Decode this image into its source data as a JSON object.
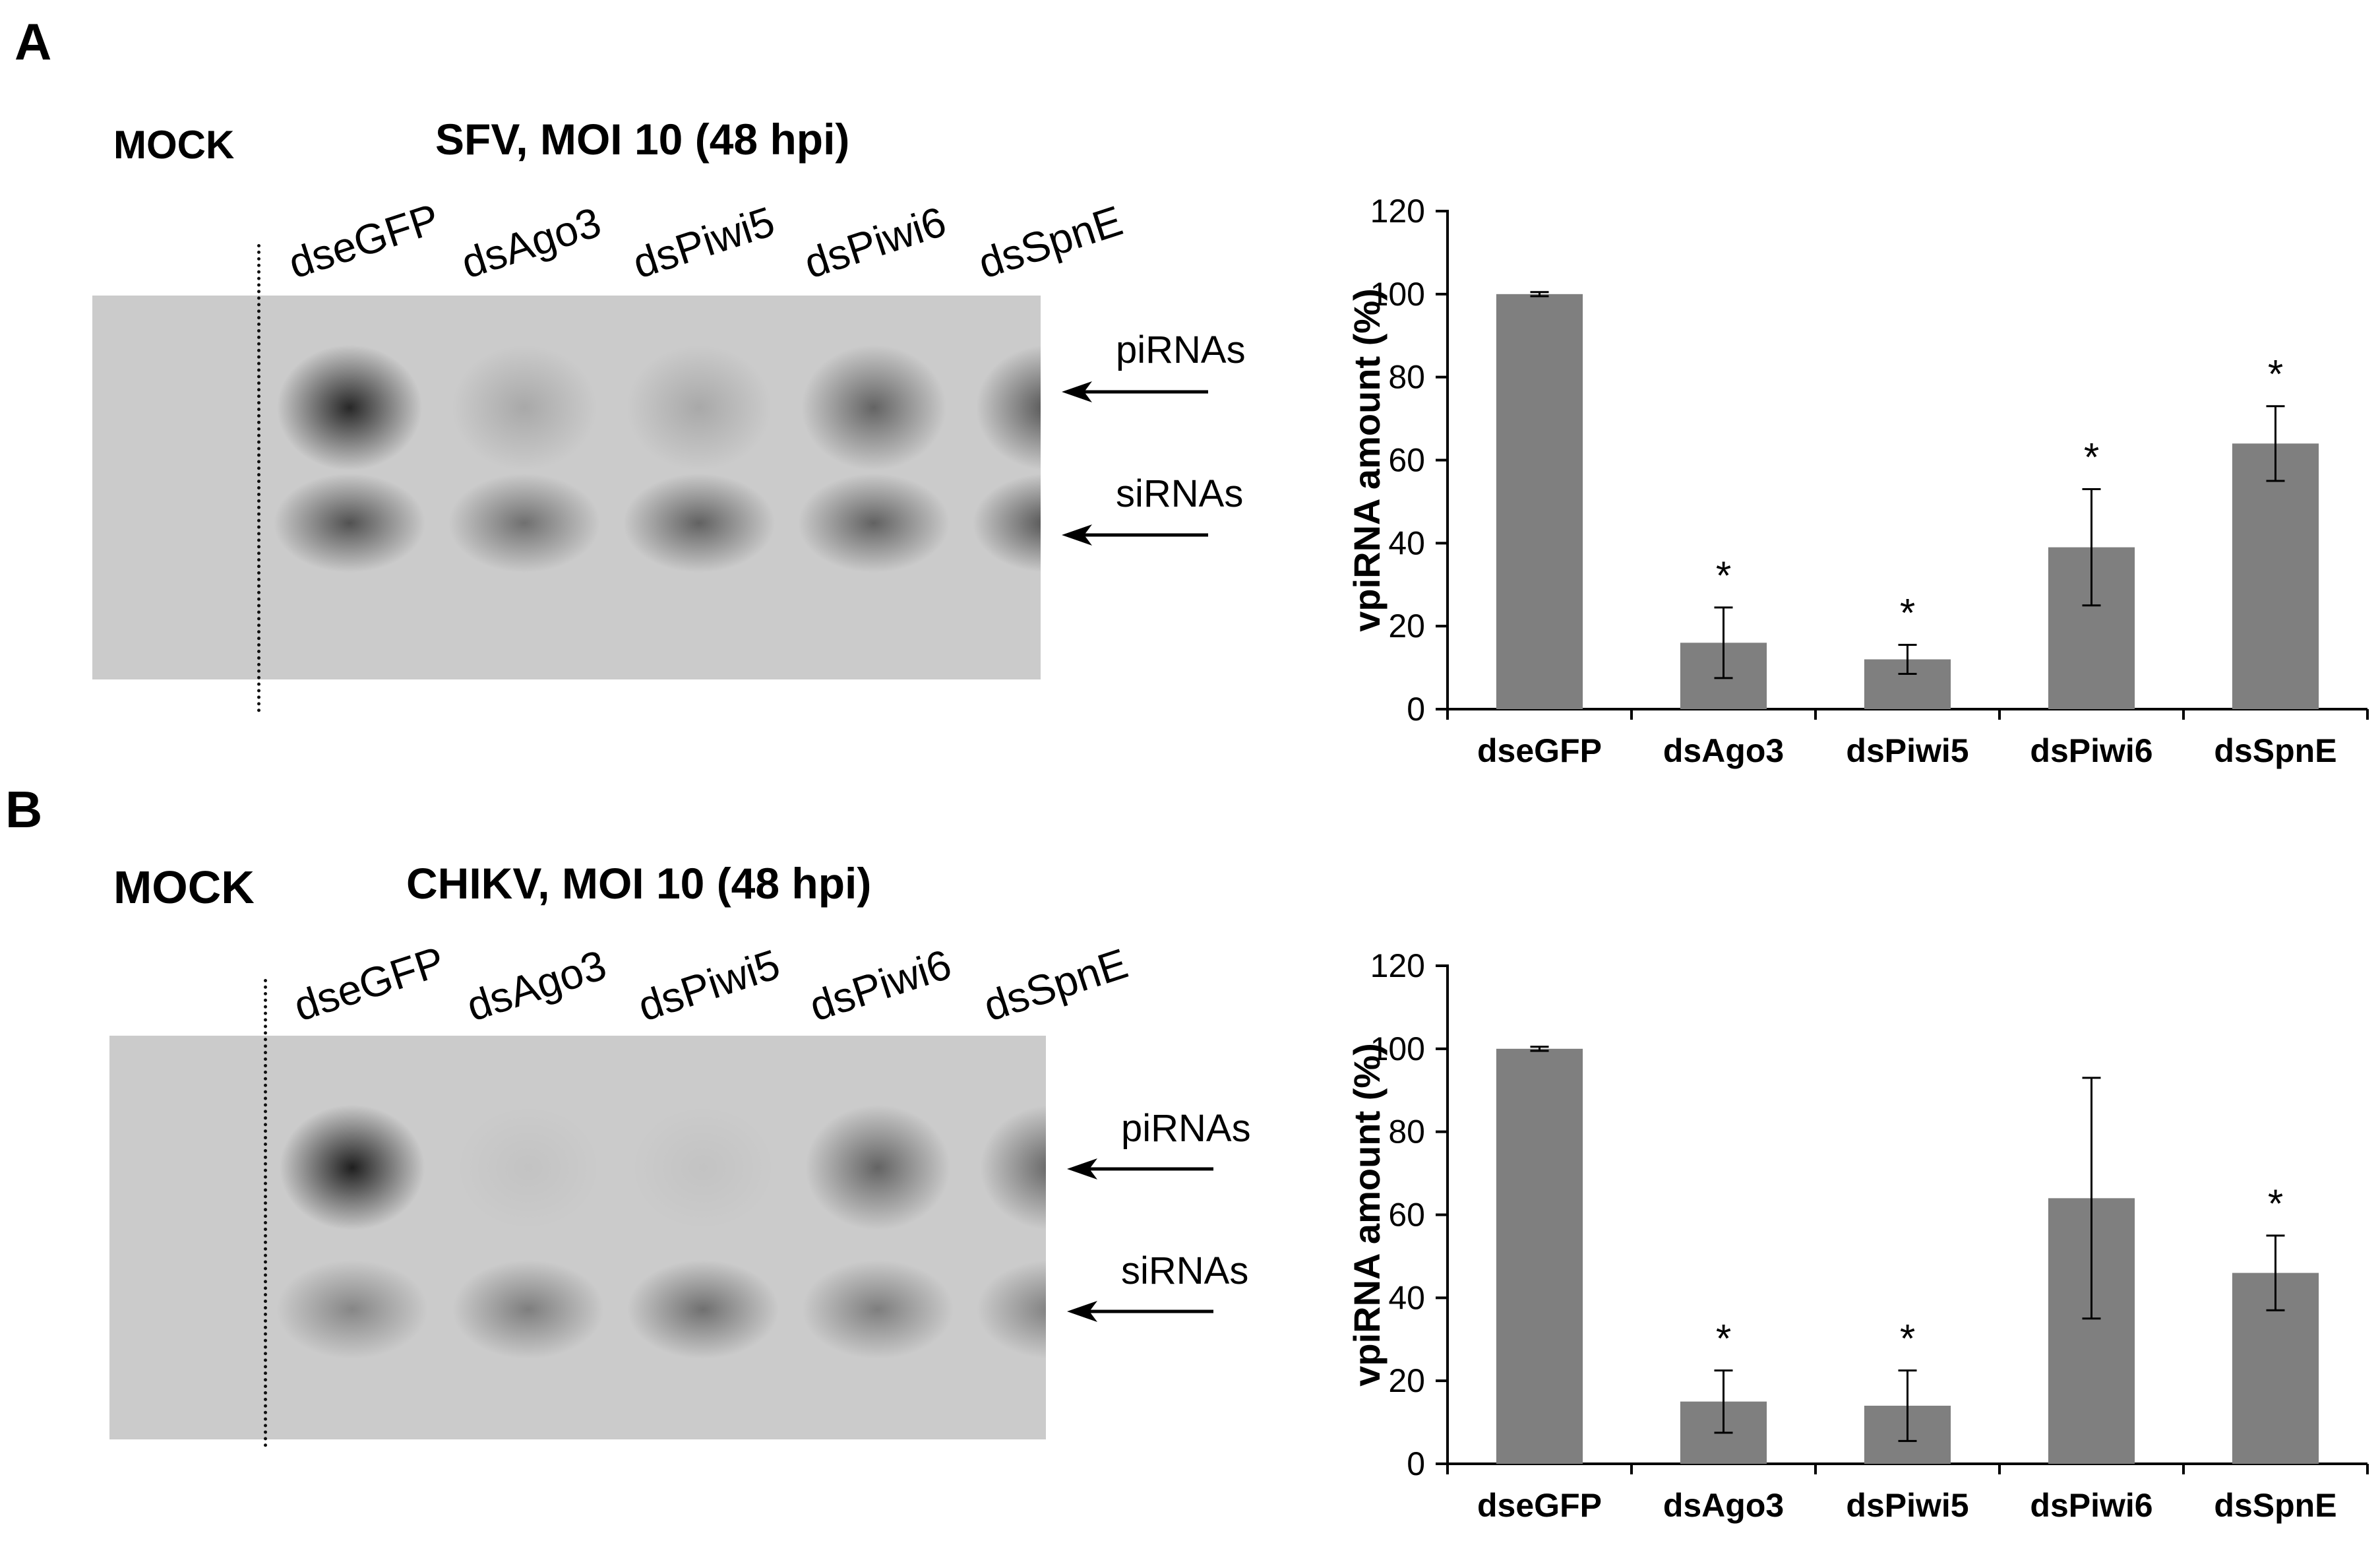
{
  "panels": [
    {
      "letter": "A",
      "mock_label": "MOCK",
      "virus_label": "SFV, MOI 10 (48 hpi)",
      "lanes": [
        "dseGFP",
        "dsAgo3",
        "dsPiwi5",
        "dsPiwi6",
        "dsSpnE"
      ],
      "band_labels": [
        "piRNAs",
        "siRNAs"
      ],
      "bands": {
        "piRNA_intensity": [
          0.95,
          0.2,
          0.2,
          0.6,
          0.7
        ],
        "siRNA_intensity": [
          0.8,
          0.6,
          0.7,
          0.7,
          0.8
        ]
      }
    },
    {
      "letter": "B",
      "mock_label": "MOCK",
      "virus_label": "CHIKV, MOI 10 (48 hpi)",
      "lanes": [
        "dseGFP",
        "dsAgo3",
        "dsPiwi5",
        "dsPiwi6",
        "dsSpnE"
      ],
      "band_labels": [
        "piRNAs",
        "siRNAs"
      ],
      "bands": {
        "piRNA_intensity": [
          1.0,
          0.05,
          0.05,
          0.6,
          0.6
        ],
        "siRNA_intensity": [
          0.45,
          0.5,
          0.6,
          0.5,
          0.5
        ]
      }
    }
  ],
  "chart_data": [
    {
      "type": "bar",
      "categories": [
        "dseGFP",
        "dsAgo3",
        "dsPiwi5",
        "dsPiwi6",
        "dsSpnE"
      ],
      "values": [
        100,
        16,
        12,
        39,
        64
      ],
      "error": [
        0.5,
        8.5,
        3.5,
        14,
        9
      ],
      "significance": [
        "",
        "*",
        "*",
        "*",
        "*"
      ],
      "ylabel": "vpiRNA amount (%)",
      "xlabel": "",
      "ylim": [
        0,
        120
      ],
      "yticks": [
        0,
        20,
        40,
        60,
        80,
        100,
        120
      ],
      "grid": false,
      "bar_color": "#7f7f7f"
    },
    {
      "type": "bar",
      "categories": [
        "dseGFP",
        "dsAgo3",
        "dsPiwi5",
        "dsPiwi6",
        "dsSpnE"
      ],
      "values": [
        100,
        15,
        14,
        64,
        46
      ],
      "error": [
        0.5,
        7.5,
        8.5,
        29,
        9
      ],
      "significance": [
        "",
        "*",
        "*",
        "",
        "*"
      ],
      "ylabel": "vpiRNA amount (%)",
      "xlabel": "",
      "ylim": [
        0,
        120
      ],
      "yticks": [
        0,
        20,
        40,
        60,
        80,
        100,
        120
      ],
      "grid": false,
      "bar_color": "#7f7f7f"
    }
  ]
}
